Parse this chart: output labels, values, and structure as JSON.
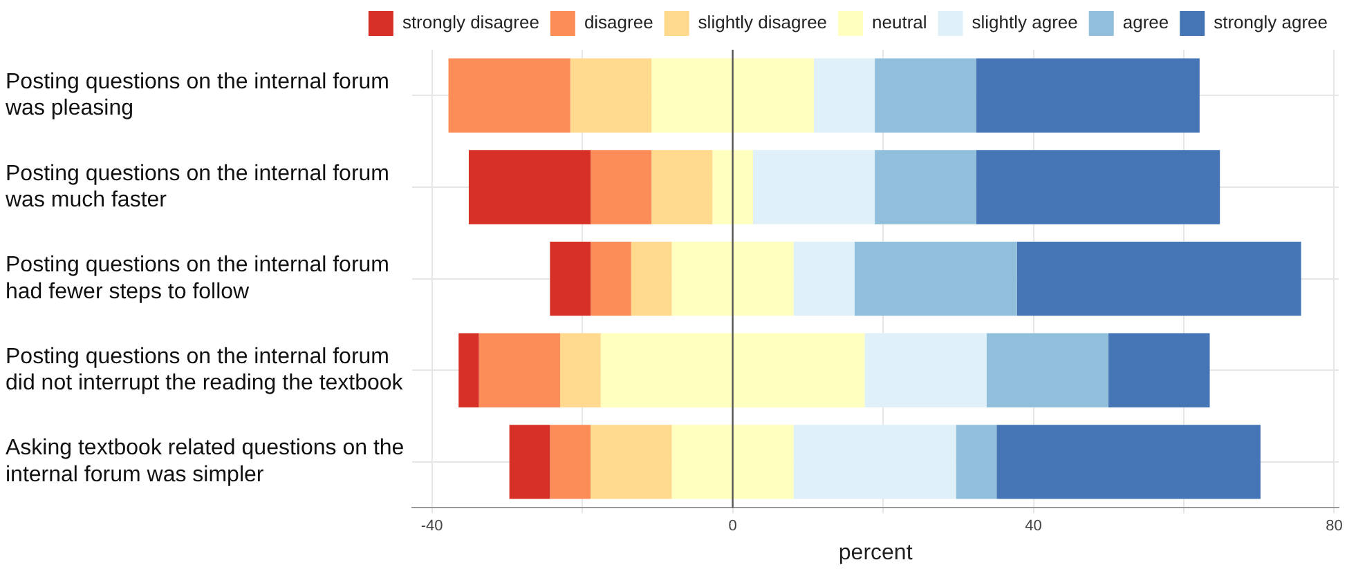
{
  "chart_data": {
    "type": "bar",
    "orientation": "horizontal",
    "categories": [
      "Posting questions on the internal forum was pleasing",
      "Posting questions on the internal forum was much faster",
      "Posting questions on the internal forum had fewer steps to follow",
      "Posting questions on the internal forum did not interrupt the reading the textbook",
      "Asking textbook related questions on the internal forum was simpler"
    ],
    "series": [
      {
        "name": "strongly disagree",
        "color": "#d73027",
        "values": [
          null,
          16.2,
          5.4,
          2.7,
          5.4
        ],
        "base": [
          null,
          -35.1,
          -24.3,
          -36.45,
          -29.7
        ]
      },
      {
        "name": "disagree",
        "color": "#fc8d59",
        "values": [
          16.2,
          8.1,
          5.4,
          10.8,
          5.4
        ],
        "base": [
          -37.8,
          -18.9,
          -18.9,
          -33.75,
          -24.3
        ]
      },
      {
        "name": "slightly disagree",
        "color": "#fed98e",
        "values": [
          10.8,
          8.1,
          5.4,
          5.4,
          10.8
        ],
        "base": [
          -21.6,
          -10.8,
          -13.5,
          -22.95,
          -18.9
        ]
      },
      {
        "name": "neutral",
        "color": "#ffffbf",
        "values": [
          21.6,
          5.4,
          16.2,
          35.1,
          16.2
        ],
        "base": [
          -10.8,
          -2.7,
          -8.1,
          -17.55,
          -8.1
        ]
      },
      {
        "name": "slightly agree",
        "color": "#e0f0f8",
        "values": [
          8.1,
          16.2,
          8.1,
          16.2,
          21.6
        ],
        "base": [
          10.8,
          2.7,
          8.1,
          17.55,
          8.1
        ]
      },
      {
        "name": "agree",
        "color": "#91bfdb",
        "values": [
          13.5,
          13.5,
          21.6,
          16.2,
          5.4
        ],
        "base": [
          18.9,
          18.9,
          16.2,
          33.75,
          29.7
        ]
      },
      {
        "name": "strongly agree",
        "color": "#4575b4",
        "values": [
          29.7,
          32.4,
          37.8,
          13.5,
          35.1
        ],
        "base": [
          32.4,
          32.4,
          37.8,
          49.95,
          35.1
        ]
      }
    ],
    "xlabel": "percent",
    "xlim": [
      -42.6,
      80.6
    ],
    "xticks": [
      -40,
      {
        "value": -20,
        "label": null
      },
      0,
      {
        "value": 20,
        "label": null
      },
      40,
      {
        "value": 60,
        "label": null
      },
      80
    ],
    "ref_lines": [
      {
        "axis": "x",
        "value": 0,
        "color": "#555555"
      }
    ],
    "grid": true,
    "legend": "top"
  }
}
